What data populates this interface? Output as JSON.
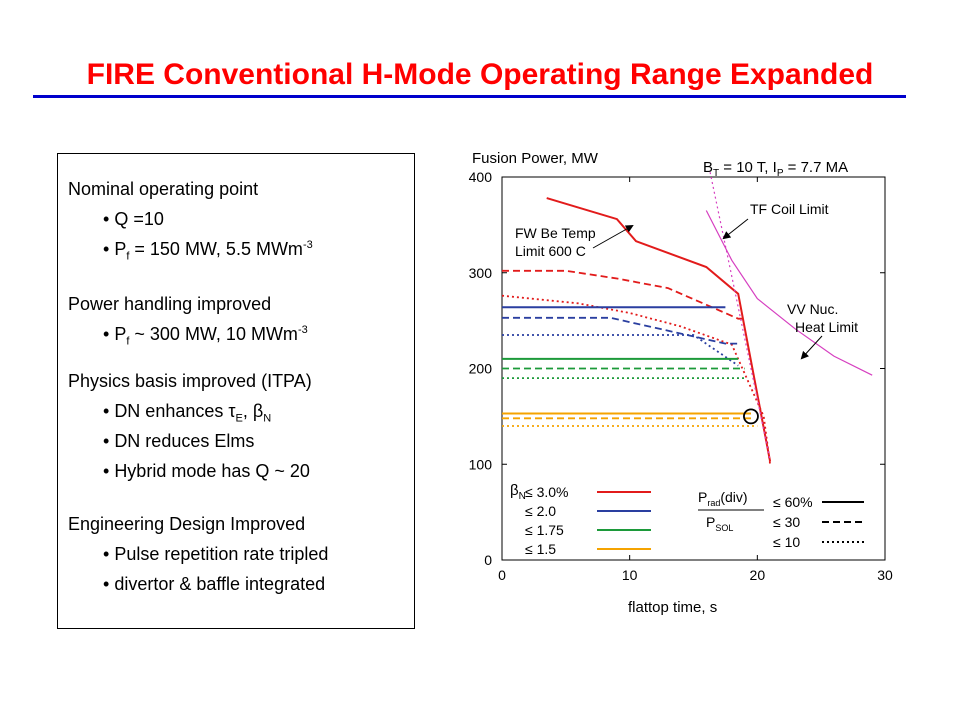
{
  "slide": {
    "title": "FIRE Conventional  H-Mode Operating Range Expanded",
    "colors": {
      "title": "#ff0000",
      "rule": "#0000cc"
    }
  },
  "textbox": {
    "s1": {
      "heading": "Nominal operating point",
      "b1": "Q =10",
      "b2_pre": "P",
      "b2_sub": "f",
      "b2_mid": " = 150 MW,  5.5 MWm",
      "b2_sup": "-3"
    },
    "s2": {
      "heading": "Power handling improved",
      "b1_pre": "P",
      "b1_sub": "f",
      "b1_mid": " ~ 300 MW, 10 MWm",
      "b1_sup": "-3"
    },
    "s3": {
      "heading": "Physics basis improved (ITPA)",
      "b1_pre": "DN enhances  ",
      "b1_tau": "τ",
      "b1_tau_sub": "E",
      "b1_comma": ", ",
      "b1_beta": "β",
      "b1_beta_sub": "N",
      "b2": "DN reduces Elms",
      "b3": "Hybrid mode has Q ~ 20"
    },
    "s4": {
      "heading": "Engineering Design Improved",
      "b1": "Pulse repetition rate tripled",
      "b2": "divertor & baffle integrated"
    }
  },
  "chart_data": {
    "type": "line",
    "title": "Fusion Power, MW",
    "subtitle": {
      "b": "B",
      "b_sub": "T",
      "mid": " = 10 T, I",
      "i_sub": "P",
      "end": " = 7.7 MA"
    },
    "xlabel": "flattop time, s",
    "ylabel": "Fusion Power, MW",
    "xlim": [
      0,
      30
    ],
    "ylim": [
      0,
      400
    ],
    "xticks": [
      "0",
      "10",
      "20",
      "30"
    ],
    "yticks": [
      "0",
      "100",
      "200",
      "300",
      "400"
    ],
    "grid": false,
    "colors": {
      "red": "#e21b1b",
      "blue": "#2a3fa0",
      "green": "#1c9a3a",
      "orange": "#f5a300",
      "magenta": "#d63fc0",
      "black": "#000000"
    },
    "annotations": [
      {
        "text1": "FW Be Temp",
        "text2": "Limit 600 C"
      },
      {
        "text": "TF Coil Limit"
      },
      {
        "text1": "VV Nuc.",
        "text2": "Heat Limit"
      }
    ],
    "operating_point": {
      "x": 19.5,
      "y": 150
    },
    "series": [
      {
        "color": "red",
        "style": "solid",
        "points": [
          [
            3.5,
            378
          ],
          [
            9,
            356
          ],
          [
            10.5,
            333
          ],
          [
            16,
            306
          ],
          [
            18.5,
            278
          ],
          [
            21,
            103
          ]
        ]
      },
      {
        "color": "red",
        "style": "dashed",
        "points": [
          [
            0,
            302
          ],
          [
            5,
            302
          ],
          [
            9,
            294
          ],
          [
            13,
            284
          ],
          [
            18.5,
            252
          ],
          [
            19,
            252
          ]
        ]
      },
      {
        "color": "red",
        "style": "dotted",
        "points": [
          [
            0,
            276
          ],
          [
            6,
            268
          ],
          [
            10,
            258
          ],
          [
            14,
            244
          ],
          [
            18,
            225
          ],
          [
            20.5,
            150
          ],
          [
            21,
            100
          ]
        ]
      },
      {
        "color": "blue",
        "style": "solid",
        "points": [
          [
            0,
            264
          ],
          [
            17.5,
            264
          ]
        ]
      },
      {
        "color": "blue",
        "style": "dashed",
        "points": [
          [
            0,
            253
          ],
          [
            8.5,
            253
          ],
          [
            17.5,
            226
          ],
          [
            18.5,
            226
          ]
        ]
      },
      {
        "color": "blue",
        "style": "dotted",
        "points": [
          [
            0,
            235
          ],
          [
            15,
            235
          ],
          [
            18.5,
            203
          ]
        ]
      },
      {
        "color": "green",
        "style": "solid",
        "points": [
          [
            0,
            210
          ],
          [
            18.5,
            210
          ]
        ]
      },
      {
        "color": "green",
        "style": "dashed",
        "points": [
          [
            0,
            200
          ],
          [
            19,
            200
          ]
        ]
      },
      {
        "color": "green",
        "style": "dotted",
        "points": [
          [
            0,
            190
          ],
          [
            19,
            190
          ]
        ]
      },
      {
        "color": "orange",
        "style": "solid",
        "points": [
          [
            0,
            153
          ],
          [
            19.5,
            153
          ]
        ]
      },
      {
        "color": "orange",
        "style": "dashed",
        "points": [
          [
            0,
            148
          ],
          [
            19.5,
            148
          ]
        ]
      },
      {
        "color": "orange",
        "style": "dotted",
        "points": [
          [
            0,
            140
          ],
          [
            20,
            140
          ]
        ]
      },
      {
        "color": "magenta",
        "style": "solid",
        "points": [
          [
            16,
            365
          ],
          [
            18,
            313
          ],
          [
            20,
            273
          ],
          [
            23,
            241
          ],
          [
            26,
            213
          ],
          [
            29,
            193
          ]
        ]
      },
      {
        "color": "magenta",
        "style": "dotted",
        "points": [
          [
            16.3,
            405
          ],
          [
            21,
            104
          ]
        ]
      }
    ],
    "legend": {
      "placement": "bottom-left",
      "beta_title": "β",
      "beta_sub": "N",
      "beta_entries": [
        {
          "label": "≤ 3.0%",
          "color": "red"
        },
        {
          "label": "≤ 2.0",
          "color": "blue"
        },
        {
          "label": "≤ 1.75",
          "color": "green"
        },
        {
          "label": "≤ 1.5",
          "color": "orange"
        }
      ],
      "prad_num": "P",
      "prad_num_sub": "rad",
      "prad_num_end": "(div)",
      "prad_den": "P",
      "prad_den_sub": "SOL",
      "prad_entries": [
        {
          "label": "≤ 60%",
          "style": "solid"
        },
        {
          "label": "≤ 30",
          "style": "dashed"
        },
        {
          "label": "≤ 10",
          "style": "dotted"
        }
      ]
    }
  }
}
